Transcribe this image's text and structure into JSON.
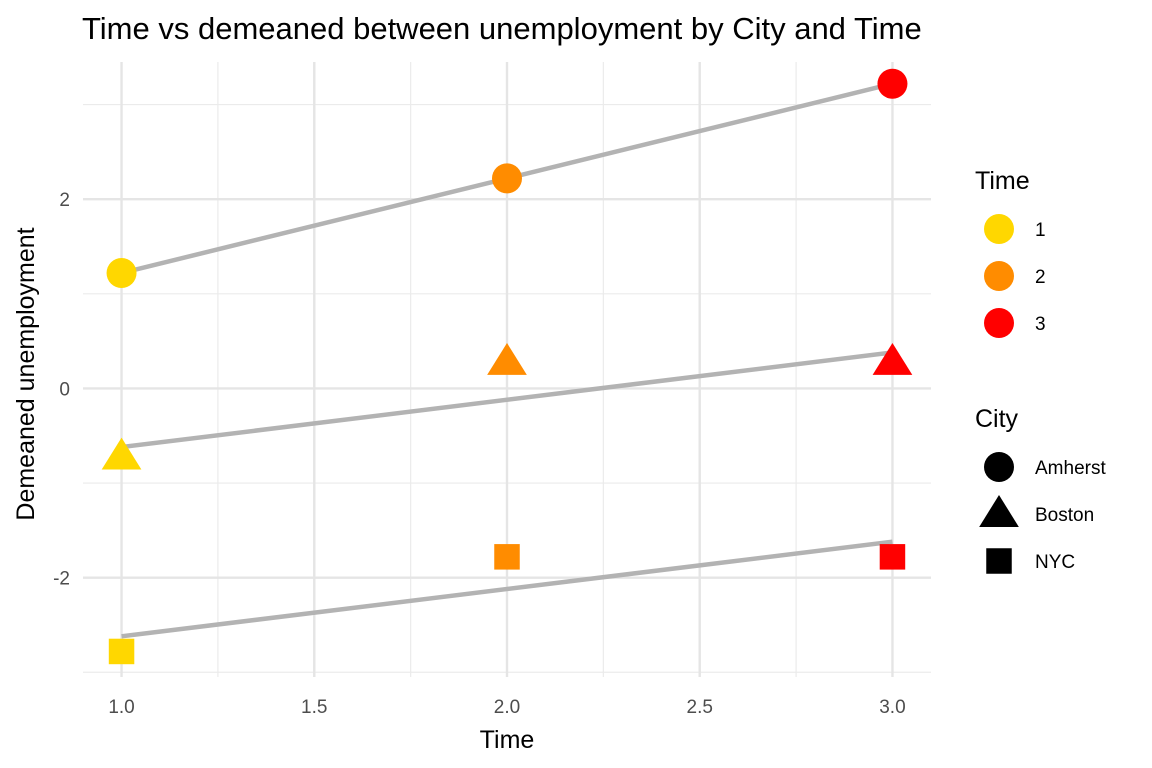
{
  "chart_data": {
    "type": "scatter",
    "title": "Time vs demeaned between unemployment by City and Time",
    "xlabel": "Time",
    "ylabel": "Demeaned unemployment",
    "xlim": [
      0.9,
      3.1
    ],
    "ylim": [
      -3.05,
      3.45
    ],
    "x_ticks": [
      {
        "value": 1.0,
        "label": "1.0"
      },
      {
        "value": 1.5,
        "label": "1.5"
      },
      {
        "value": 2.0,
        "label": "2.0"
      },
      {
        "value": 2.5,
        "label": "2.5"
      },
      {
        "value": 3.0,
        "label": "3.0"
      }
    ],
    "y_ticks": [
      {
        "value": -2,
        "label": "-2"
      },
      {
        "value": 0,
        "label": "0"
      },
      {
        "value": 2,
        "label": "2"
      }
    ],
    "x_minor_ticks": [
      1.25,
      1.75,
      2.25,
      2.75
    ],
    "y_minor_ticks": [
      -3,
      -1,
      1,
      3
    ],
    "grid": true,
    "series": [
      {
        "name": "Amherst",
        "shape": "circle",
        "points": [
          {
            "x": 1,
            "y": 1.22,
            "time": "1"
          },
          {
            "x": 2,
            "y": 2.22,
            "time": "2"
          },
          {
            "x": 3,
            "y": 3.22,
            "time": "3"
          }
        ],
        "fit": [
          [
            1,
            1.22
          ],
          [
            3,
            3.22
          ]
        ]
      },
      {
        "name": "Boston",
        "shape": "triangle",
        "points": [
          {
            "x": 1,
            "y": -0.72,
            "time": "1"
          },
          {
            "x": 2,
            "y": 0.28,
            "time": "2"
          },
          {
            "x": 3,
            "y": 0.28,
            "time": "3"
          }
        ],
        "fit": [
          [
            1,
            -0.62
          ],
          [
            3,
            0.38
          ]
        ]
      },
      {
        "name": "NYC",
        "shape": "square",
        "points": [
          {
            "x": 1,
            "y": -2.78,
            "time": "1"
          },
          {
            "x": 2,
            "y": -1.78,
            "time": "2"
          },
          {
            "x": 3,
            "y": -1.78,
            "time": "3"
          }
        ],
        "fit": [
          [
            1,
            -2.62
          ],
          [
            3,
            -1.62
          ]
        ]
      }
    ],
    "fit_line_color": "#b3b3b3",
    "legends": [
      {
        "title": "Time",
        "kind": "color",
        "items": [
          {
            "label": "1",
            "color": "#FFD700"
          },
          {
            "label": "2",
            "color": "#FF8C00"
          },
          {
            "label": "3",
            "color": "#FF0000"
          }
        ]
      },
      {
        "title": "City",
        "kind": "shape",
        "items": [
          {
            "label": "Amherst",
            "shape": "circle"
          },
          {
            "label": "Boston",
            "shape": "triangle"
          },
          {
            "label": "NYC",
            "shape": "square"
          }
        ]
      }
    ],
    "legend_placement": "right"
  }
}
